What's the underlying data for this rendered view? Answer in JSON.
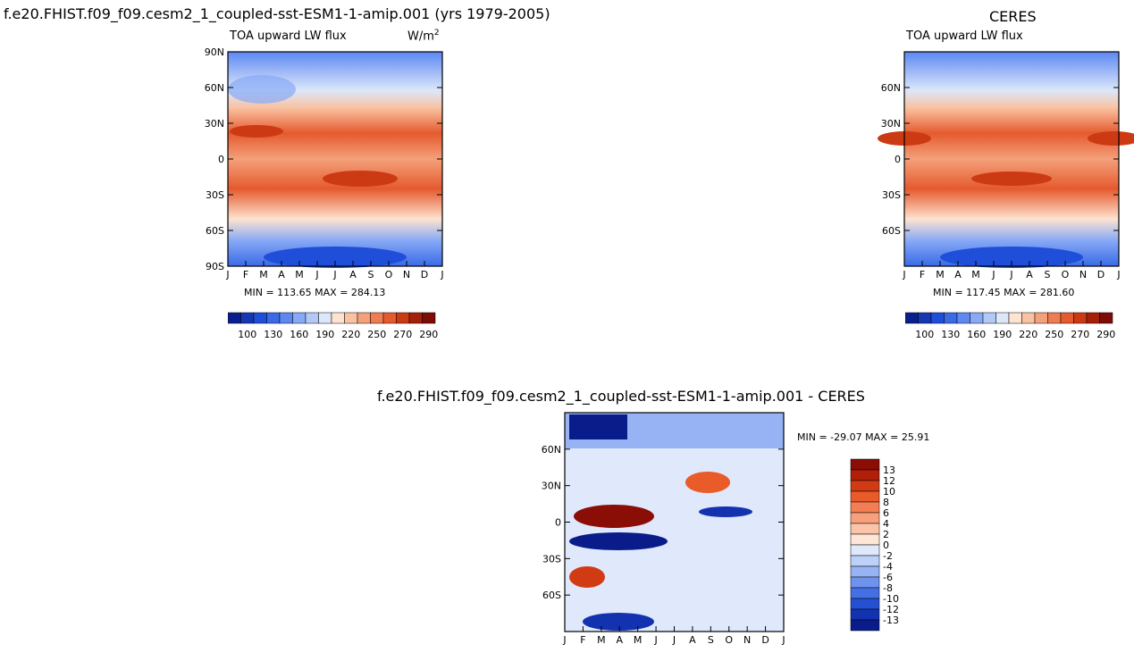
{
  "figure": {
    "left_title": "f.e20.FHIST.f09_f09.cesm2_1_coupled-sst-ESM1-1-amip.001 (yrs 1979-2005)",
    "right_title": "CERES",
    "bottom_title": "f.e20.FHIST.f09_f09.cesm2_1_coupled-sst-ESM1-1-amip.001 - CERES"
  },
  "chart_data": [
    {
      "id": "model",
      "type": "heatmap",
      "variable": "TOA upward LW flux",
      "units": "W/m",
      "units_sup": "2",
      "x_ticks": [
        "J",
        "F",
        "M",
        "A",
        "M",
        "J",
        "J",
        "A",
        "S",
        "O",
        "N",
        "D",
        "J"
      ],
      "y_ticks": [
        "90N",
        "60N",
        "30N",
        "0",
        "30S",
        "60S",
        "90S"
      ],
      "ylim": [
        -90,
        90
      ],
      "min_label": "MIN = 113.65 MAX = 284.13",
      "min": 113.65,
      "max": 284.13,
      "colorbar_labels": [
        "100",
        "130",
        "160",
        "190",
        "220",
        "250",
        "270",
        "290"
      ],
      "colorbar_colors": [
        "#0b1f8c",
        "#1537b5",
        "#1f4fd9",
        "#3a6ae8",
        "#5d88f2",
        "#88a9f5",
        "#b2c9f7",
        "#dce7fa",
        "#fde3d0",
        "#f9c3a3",
        "#f4a07a",
        "#ef7c52",
        "#e55a2e",
        "#cc3a14",
        "#a52008",
        "#7d0c04"
      ]
    },
    {
      "id": "ceres",
      "type": "heatmap",
      "variable": "TOA upward LW flux",
      "x_ticks": [
        "J",
        "F",
        "M",
        "A",
        "M",
        "J",
        "J",
        "A",
        "S",
        "O",
        "N",
        "D",
        "J"
      ],
      "y_ticks": [
        "60N",
        "30N",
        "0",
        "30S",
        "60S"
      ],
      "ylim": [
        -90,
        90
      ],
      "min_label": "MIN = 117.45 MAX = 281.60",
      "min": 117.45,
      "max": 281.6,
      "colorbar_labels": [
        "100",
        "130",
        "160",
        "190",
        "220",
        "250",
        "270",
        "290"
      ]
    },
    {
      "id": "diff",
      "type": "heatmap",
      "x_ticks": [
        "J",
        "F",
        "M",
        "A",
        "M",
        "J",
        "J",
        "A",
        "S",
        "O",
        "N",
        "D",
        "J"
      ],
      "y_ticks": [
        "60N",
        "30N",
        "0",
        "30S",
        "60S"
      ],
      "ylim": [
        -90,
        90
      ],
      "min_label": "MIN = -29.07 MAX =  25.91",
      "min": -29.07,
      "max": 25.91,
      "colorbar_labels": [
        "13",
        "12",
        "10",
        "8",
        "6",
        "4",
        "2",
        "0",
        "-2",
        "-4",
        "-6",
        "-8",
        "-10",
        "-12",
        "-13"
      ],
      "colorbar_colors": [
        "#8a0d06",
        "#b01f0a",
        "#d13b14",
        "#ea5b2a",
        "#f47e53",
        "#f8a07c",
        "#fbc4a8",
        "#fde6d6",
        "#dfe9fb",
        "#bdd0f8",
        "#97b3f4",
        "#6e92ee",
        "#4570e4",
        "#2450d2",
        "#1232b0",
        "#0a1c8a"
      ]
    }
  ]
}
